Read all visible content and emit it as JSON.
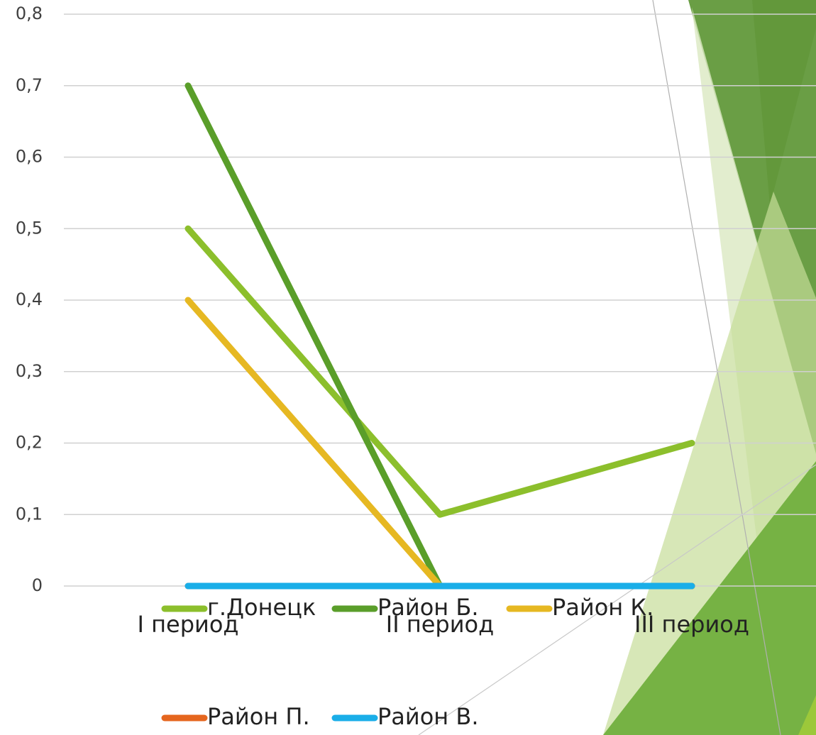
{
  "chart_data": {
    "type": "line",
    "categories": [
      "I период",
      "II период",
      "III период"
    ],
    "series": [
      {
        "name": "г.Донецк",
        "color": "#8cbf2c",
        "values": [
          0.5,
          0.1,
          0.2
        ]
      },
      {
        "name": "Район Б.",
        "color": "#5a9e2a",
        "values": [
          0.7,
          0,
          0
        ]
      },
      {
        "name": "Район К.",
        "color": "#e6b822",
        "values": [
          0.4,
          0,
          0
        ]
      },
      {
        "name": "Район П.",
        "color": "#e5661e",
        "values": [
          0,
          0,
          0
        ]
      },
      {
        "name": "Район В.",
        "color": "#1aaee8",
        "values": [
          0,
          0,
          0
        ]
      }
    ],
    "ylim": [
      0,
      0.8
    ],
    "yticks": [
      0,
      {
        "value": 0.1,
        "label": "0,1"
      },
      {
        "value": 0.2,
        "label": "0,2"
      },
      {
        "value": 0.3,
        "label": "0,3"
      },
      {
        "value": 0.4,
        "label": "0,4"
      },
      {
        "value": 0.5,
        "label": "0,5"
      },
      {
        "value": 0.6,
        "label": "0,6"
      },
      {
        "value": 0.7,
        "label": "0,7"
      },
      {
        "value": 0.8,
        "label": "0,8"
      }
    ],
    "grid": true
  }
}
